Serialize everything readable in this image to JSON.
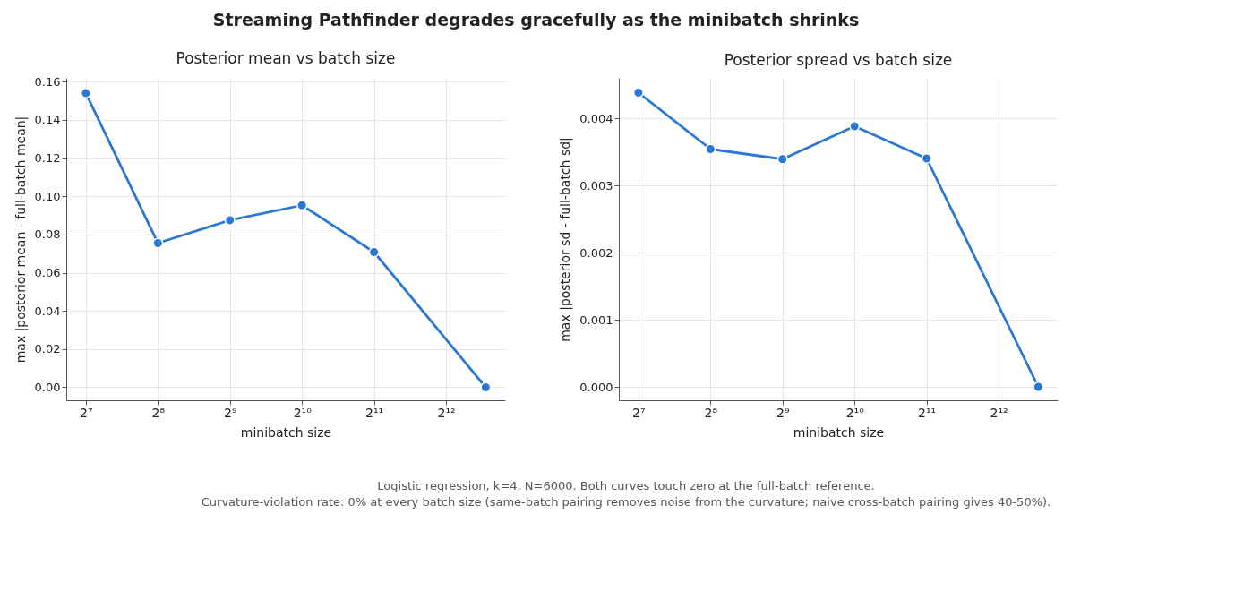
{
  "chart_data": [
    {
      "type": "line",
      "title": "Posterior mean vs batch size",
      "xlabel": "minibatch size",
      "ylabel": "max |posterior mean - full-batch mean|",
      "x": [
        128,
        256,
        512,
        1024,
        2048,
        6000
      ],
      "series": [
        {
          "color": "#2b78d4",
          "values": [
            0.154,
            0.0755,
            0.0875,
            0.0953,
            0.0708,
            0.0
          ]
        }
      ],
      "log": "x",
      "xlim": [
        106,
        7230
      ],
      "xticks": [
        {
          "value": 128,
          "label": "2⁷"
        },
        {
          "value": 256,
          "label": "2⁸"
        },
        {
          "value": 512,
          "label": "2⁹"
        },
        {
          "value": 1024,
          "label": "2¹⁰"
        },
        {
          "value": 2048,
          "label": "2¹¹"
        },
        {
          "value": 4096,
          "label": "2¹²"
        }
      ],
      "ylim": [
        -0.0068,
        0.162
      ],
      "yticks": [
        {
          "value": 0,
          "label": "0.00"
        },
        {
          "value": 0.02,
          "label": "0.02"
        },
        {
          "value": 0.04,
          "label": "0.04"
        },
        {
          "value": 0.06,
          "label": "0.06"
        },
        {
          "value": 0.08,
          "label": "0.08"
        },
        {
          "value": 0.1,
          "label": "0.10"
        },
        {
          "value": 0.12,
          "label": "0.12"
        },
        {
          "value": 0.14,
          "label": "0.14"
        },
        {
          "value": 0.16,
          "label": "0.16"
        }
      ],
      "grid": true,
      "legend": false,
      "marker": "circle",
      "line_style": "solid",
      "annotations": [
        "Streaming Pathfinder degrades gracefully as the minibatch shrinks"
      ]
    },
    {
      "type": "line",
      "title": "Posterior spread vs batch size",
      "xlabel": "minibatch size",
      "ylabel": "max |posterior sd - full-batch sd|",
      "x": [
        128,
        256,
        512,
        1024,
        2048,
        6000
      ],
      "series": [
        {
          "color": "#2b78d4",
          "values": [
            0.00438,
            0.00354,
            0.00339,
            0.00388,
            0.0034,
            0.0
          ]
        }
      ],
      "log": "x",
      "xlim": [
        106,
        7230
      ],
      "xticks": [
        {
          "value": 128,
          "label": "2⁷"
        },
        {
          "value": 256,
          "label": "2⁸"
        },
        {
          "value": 512,
          "label": "2⁹"
        },
        {
          "value": 1024,
          "label": "2¹⁰"
        },
        {
          "value": 2048,
          "label": "2¹¹"
        },
        {
          "value": 4096,
          "label": "2¹²"
        }
      ],
      "ylim": [
        -0.0002,
        0.0046
      ],
      "yticks": [
        {
          "value": 0,
          "label": "0.000"
        },
        {
          "value": 0.001,
          "label": "0.001"
        },
        {
          "value": 0.002,
          "label": "0.002"
        },
        {
          "value": 0.003,
          "label": "0.003"
        },
        {
          "value": 0.004,
          "label": "0.004"
        }
      ],
      "grid": true,
      "legend": false,
      "marker": "circle",
      "line_style": "solid",
      "annotations": [
        "Logistic regression, k=4, N=6000. Both curves touch zero at the full-batch reference.",
        "Curvature-violation rate: 0% at every batch size (same-batch pairing removes noise from the curvature; naive cross-batch pairing gives 40-50%)."
      ]
    }
  ]
}
